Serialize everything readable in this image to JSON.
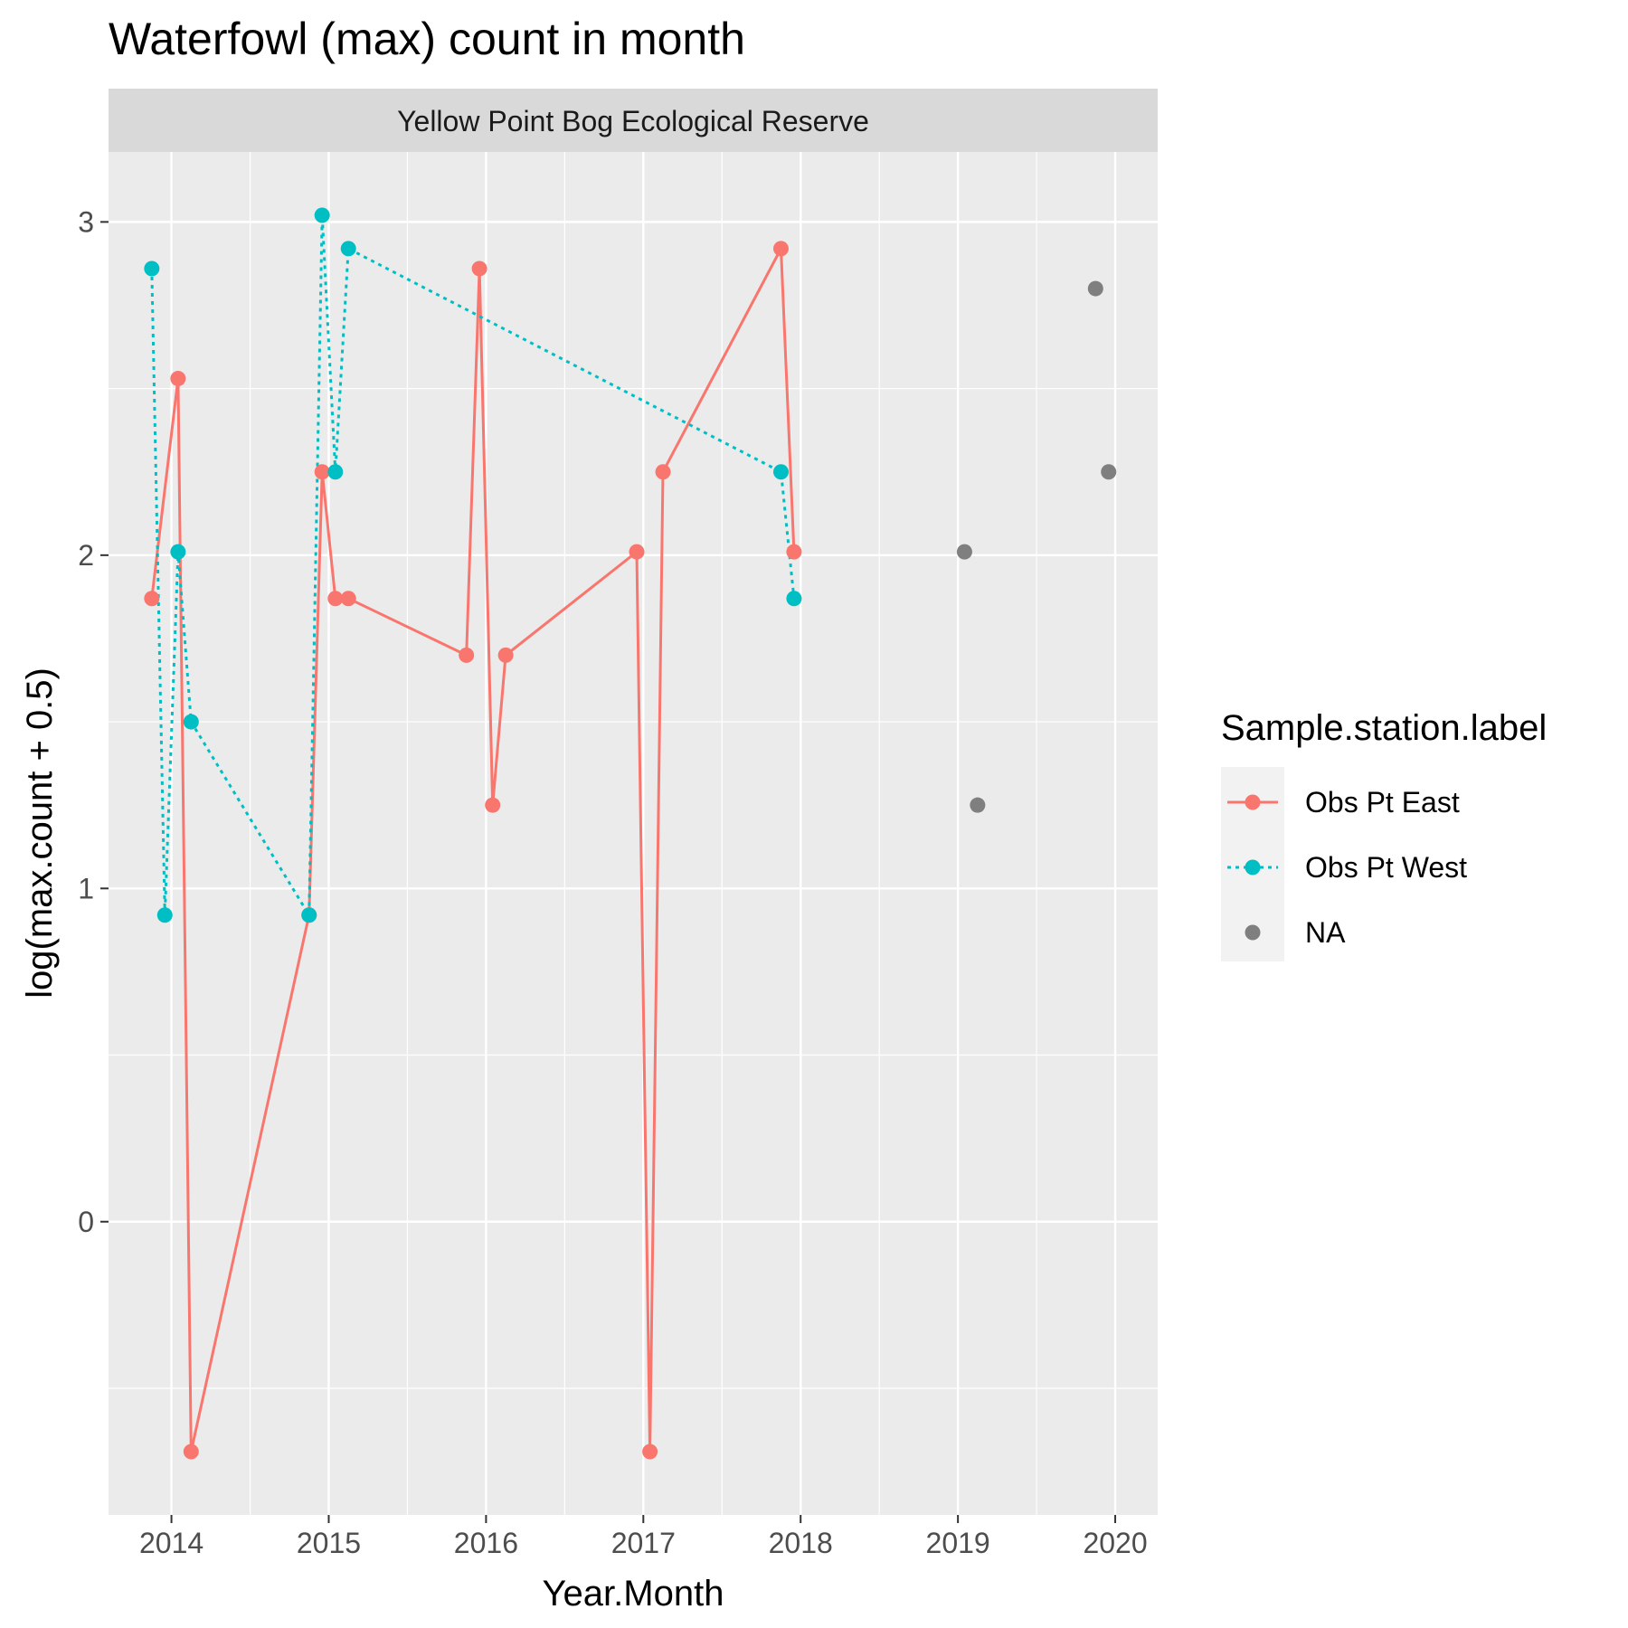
{
  "chart_data": {
    "type": "line",
    "title": "Waterfowl (max) count in month",
    "facet": "Yellow Point Bog Ecological Reserve",
    "xlabel": "Year.Month",
    "ylabel": "log(max.count + 0.5)",
    "xlim": [
      2013.6,
      2020.27
    ],
    "ylim": [
      -0.88,
      3.21
    ],
    "x_ticks": [
      2014,
      2015,
      2016,
      2017,
      2018,
      2019,
      2020
    ],
    "x_tick_labels": [
      "2014",
      "2015",
      "2016",
      "2017",
      "2018",
      "2019",
      "2020"
    ],
    "y_ticks": [
      0,
      1,
      2,
      3
    ],
    "y_tick_labels": [
      "0",
      "1",
      "2",
      "3"
    ],
    "grid": true,
    "legend": {
      "title": "Sample.station.label",
      "position": "right"
    },
    "series": [
      {
        "name": "Obs Pt East",
        "color": "#F8766D",
        "line": "solid",
        "points": [
          [
            2013.875,
            1.87
          ],
          [
            2014.042,
            2.53
          ],
          [
            2014.125,
            -0.69
          ],
          [
            2014.875,
            0.92
          ],
          [
            2014.958,
            2.25
          ],
          [
            2015.042,
            1.87
          ],
          [
            2015.125,
            1.87
          ],
          [
            2015.875,
            1.7
          ],
          [
            2015.958,
            2.86
          ],
          [
            2016.042,
            1.25
          ],
          [
            2016.125,
            1.7
          ],
          [
            2016.958,
            2.01
          ],
          [
            2017.042,
            -0.69
          ],
          [
            2017.125,
            2.25
          ],
          [
            2017.875,
            2.92
          ],
          [
            2017.958,
            2.01
          ]
        ]
      },
      {
        "name": "Obs Pt West",
        "color": "#00BFC4",
        "line": "dotted",
        "points": [
          [
            2013.875,
            2.86
          ],
          [
            2013.958,
            0.92
          ],
          [
            2014.042,
            2.01
          ],
          [
            2014.125,
            1.5
          ],
          [
            2014.875,
            0.92
          ],
          [
            2014.958,
            3.02
          ],
          [
            2015.042,
            2.25
          ],
          [
            2015.125,
            2.92
          ],
          [
            2017.875,
            2.25
          ],
          [
            2017.958,
            1.87
          ]
        ]
      },
      {
        "name": "NA",
        "color": "#7F7F7F",
        "line": "none",
        "points": [
          [
            2019.042,
            2.01
          ],
          [
            2019.125,
            1.25
          ],
          [
            2019.875,
            2.8
          ],
          [
            2019.958,
            2.25
          ]
        ]
      }
    ]
  }
}
